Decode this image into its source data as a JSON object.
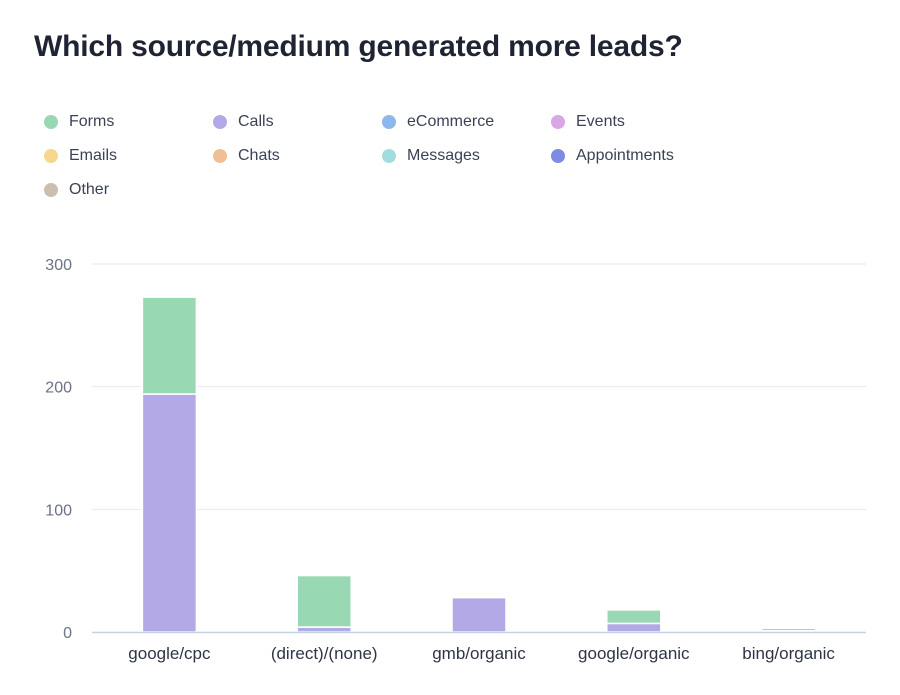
{
  "title": "Which source/medium generated more leads?",
  "colors": {
    "Forms": "#98d8b2",
    "Calls": "#b3a9e6",
    "eCommerce": "#8fb7ec",
    "Events": "#d9a6e6",
    "Emails": "#f6d78d",
    "Chats": "#f2bf94",
    "Messages": "#a3dcde",
    "Appointments": "#7d8ce2",
    "Other": "#cdbfb0"
  },
  "legend": [
    {
      "label": "Forms"
    },
    {
      "label": "Calls"
    },
    {
      "label": "eCommerce"
    },
    {
      "label": "Events"
    },
    {
      "label": "Emails"
    },
    {
      "label": "Chats"
    },
    {
      "label": "Messages"
    },
    {
      "label": "Appointments"
    },
    {
      "label": "Other"
    }
  ],
  "chart_data": {
    "type": "bar",
    "stacked": true,
    "title": "Which source/medium generated more leads?",
    "xlabel": "",
    "ylabel": "",
    "ylim": [
      0,
      300
    ],
    "yticks": [
      0,
      100,
      200,
      300
    ],
    "grid": true,
    "legend_position": "top",
    "categories": [
      "google/cpc",
      "(direct)/(none)",
      "gmb/organic",
      "google/organic",
      "bing/organic"
    ],
    "series": [
      {
        "name": "Forms",
        "values": [
          79,
          42,
          0,
          11,
          2
        ]
      },
      {
        "name": "Calls",
        "values": [
          194,
          4,
          28,
          7,
          1
        ]
      },
      {
        "name": "eCommerce",
        "values": [
          0,
          0,
          0,
          0,
          0
        ]
      },
      {
        "name": "Events",
        "values": [
          0,
          0,
          0,
          0,
          0
        ]
      },
      {
        "name": "Emails",
        "values": [
          0,
          0,
          0,
          0,
          0
        ]
      },
      {
        "name": "Chats",
        "values": [
          0,
          0,
          0,
          0,
          0
        ]
      },
      {
        "name": "Messages",
        "values": [
          0,
          0,
          0,
          0,
          0
        ]
      },
      {
        "name": "Appointments",
        "values": [
          0,
          0,
          0,
          0,
          0
        ]
      },
      {
        "name": "Other",
        "values": [
          0,
          0,
          0,
          0,
          0
        ]
      }
    ]
  }
}
